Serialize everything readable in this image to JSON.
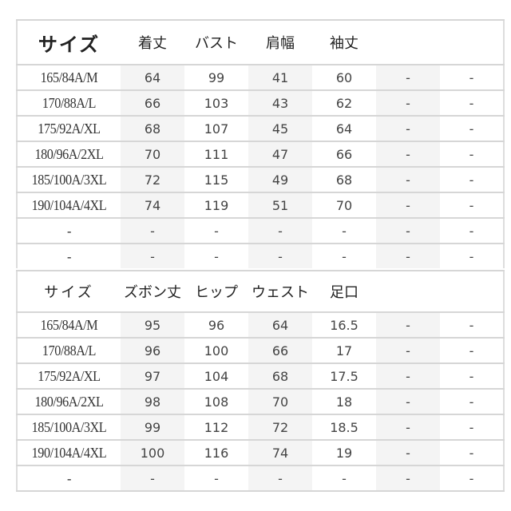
{
  "top_table": {
    "headers": [
      "サイズ",
      "着丈",
      "バスト",
      "肩幅",
      "袖丈",
      "",
      ""
    ],
    "rows": [
      [
        "165/84A/M",
        "64",
        "99",
        "41",
        "60",
        "-",
        "-"
      ],
      [
        "170/88A/L",
        "66",
        "103",
        "43",
        "62",
        "-",
        "-"
      ],
      [
        "175/92A/XL",
        "68",
        "107",
        "45",
        "64",
        "-",
        "-"
      ],
      [
        "180/96A/2XL",
        "70",
        "111",
        "47",
        "66",
        "-",
        "-"
      ],
      [
        "185/100A/3XL",
        "72",
        "115",
        "49",
        "68",
        "-",
        "-"
      ],
      [
        "190/104A/4XL",
        "74",
        "119",
        "51",
        "70",
        "-",
        "-"
      ],
      [
        "-",
        "-",
        "-",
        "-",
        "-",
        "-",
        "-"
      ],
      [
        "-",
        "-",
        "-",
        "-",
        "-",
        "-",
        "-"
      ]
    ]
  },
  "bottom_table": {
    "headers": [
      "サイズ",
      "ズボン丈",
      "ヒップ",
      "ウェスト",
      "足口",
      "",
      ""
    ],
    "rows": [
      [
        "165/84A/M",
        "95",
        "96",
        "64",
        "16.5",
        "-",
        "-"
      ],
      [
        "170/88A/L",
        "96",
        "100",
        "66",
        "17",
        "-",
        "-"
      ],
      [
        "175/92A/XL",
        "97",
        "104",
        "68",
        "17.5",
        "-",
        "-"
      ],
      [
        "180/96A/2XL",
        "98",
        "108",
        "70",
        "18",
        "-",
        "-"
      ],
      [
        "185/100A/3XL",
        "99",
        "112",
        "72",
        "18.5",
        "-",
        "-"
      ],
      [
        "190/104A/4XL",
        "100",
        "116",
        "74",
        "19",
        "-",
        "-"
      ],
      [
        "-",
        "-",
        "-",
        "-",
        "-",
        "-",
        "-"
      ]
    ]
  },
  "colors": {
    "border": "#d6d6d6",
    "alt_column": "#f4f4f4",
    "text": "#444444"
  }
}
